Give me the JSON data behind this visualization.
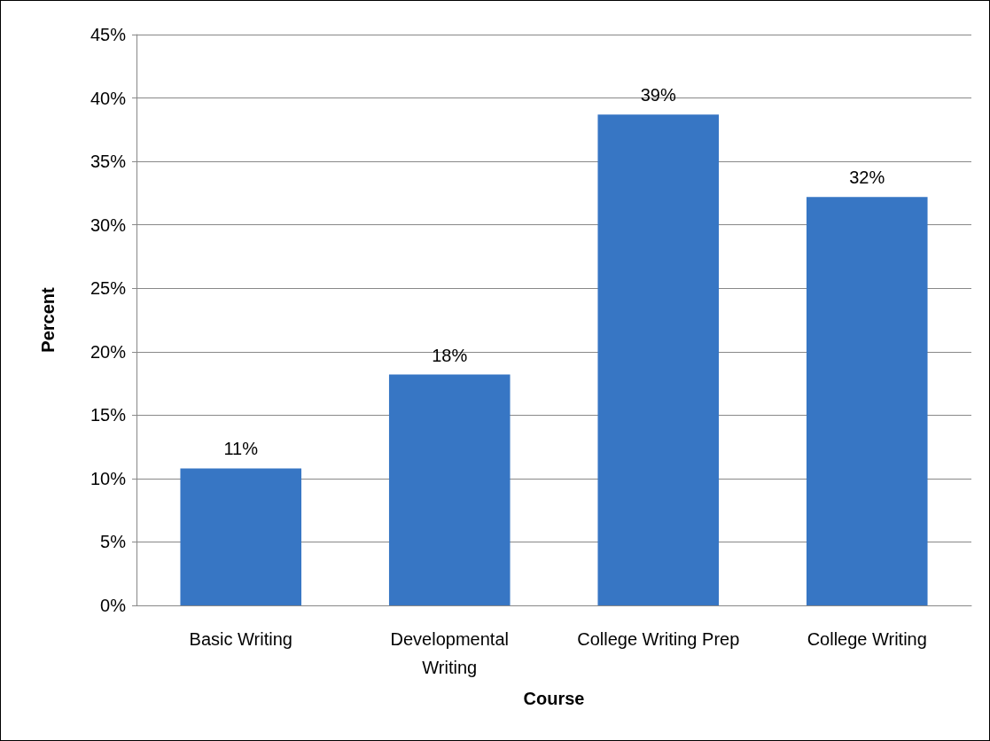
{
  "chart_data": {
    "type": "bar",
    "xlabel": "Course",
    "ylabel": "Percent",
    "categories": [
      "Basic Writing",
      "Developmental\nWriting",
      "College Writing Prep",
      "College Writing"
    ],
    "values": [
      10.8,
      18.2,
      38.7,
      32.2
    ],
    "value_labels": [
      "11%",
      "18%",
      "39%",
      "32%"
    ],
    "color": "#3776c4",
    "ylim": [
      0,
      45
    ],
    "yticks": [
      {
        "value": 0,
        "label": "0%"
      },
      {
        "value": 5,
        "label": "5%"
      },
      {
        "value": 10,
        "label": "10%"
      },
      {
        "value": 15,
        "label": "15%"
      },
      {
        "value": 20,
        "label": "20%"
      },
      {
        "value": 25,
        "label": "25%"
      },
      {
        "value": 30,
        "label": "30%"
      },
      {
        "value": 35,
        "label": "35%"
      },
      {
        "value": 40,
        "label": "40%"
      },
      {
        "value": 45,
        "label": "45%"
      }
    ],
    "grid": "y"
  }
}
